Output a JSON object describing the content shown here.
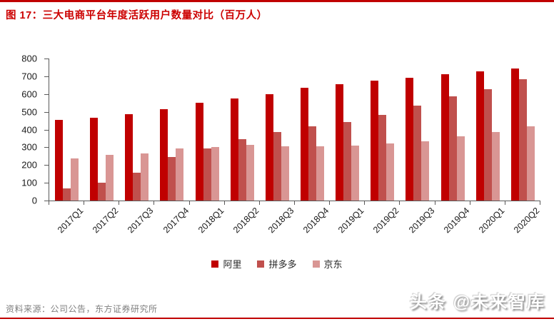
{
  "title": "图 17：三大电商平台年度活跃用户数量对比（百万人）",
  "source_note": "资料来源：公司公告，东方证券研究所",
  "watermark": "头条 @未来智库",
  "colors": {
    "accent_red": "#C00000",
    "title_red": "#CC0000",
    "axis_gray": "#595959",
    "source_gray": "#808080",
    "series_ali": "#C00000",
    "series_pdd": "#C0504D",
    "series_jd": "#D99694"
  },
  "chart_data": {
    "type": "bar",
    "title": "三大电商平台年度活跃用户数量对比（百万人）",
    "xlabel": "",
    "ylabel": "",
    "ylim": [
      0,
      800
    ],
    "ytick_step": 100,
    "grid": false,
    "legend_position": "bottom",
    "categories": [
      "2017Q1",
      "2017Q2",
      "2017Q3",
      "2017Q4",
      "2018Q1",
      "2018Q2",
      "2018Q3",
      "2018Q4",
      "2019Q1",
      "2019Q2",
      "2019Q3",
      "2019Q4",
      "2020Q1",
      "2020Q2"
    ],
    "series": [
      {
        "id": "ali",
        "name": "阿里",
        "color": "#C00000",
        "values": [
          454,
          466,
          488,
          515,
          552,
          576,
          601,
          636,
          654,
          674,
          693,
          711,
          726,
          742
        ]
      },
      {
        "id": "pdd",
        "name": "拼多多",
        "color": "#C0504D",
        "values": [
          68,
          100,
          158,
          245,
          295,
          344,
          386,
          419,
          443,
          483,
          536,
          585,
          628,
          683
        ]
      },
      {
        "id": "jd",
        "name": "京东",
        "color": "#D99694",
        "values": [
          237,
          258,
          266,
          293,
          302,
          314,
          305,
          305,
          311,
          321,
          334,
          362,
          387,
          417
        ]
      }
    ]
  }
}
